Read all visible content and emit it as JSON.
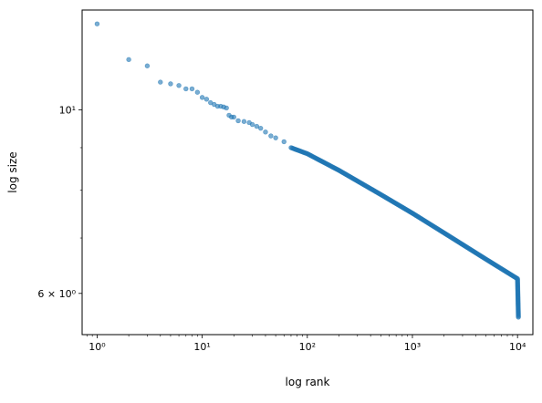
{
  "chart_data": {
    "type": "scatter",
    "title": "",
    "xlabel": "log rank",
    "ylabel": "log size",
    "xscale": "log",
    "yscale": "log",
    "xlim": [
      0.72,
      14000
    ],
    "ylim": [
      5.35,
      13.2
    ],
    "grid": false,
    "legend": "none",
    "marker_color": "#1f77b4",
    "marker_alpha": 0.6,
    "x_ticks": [
      {
        "value": 1,
        "label": "10⁰"
      },
      {
        "value": 10,
        "label": "10¹"
      },
      {
        "value": 100,
        "label": "10²"
      },
      {
        "value": 1000,
        "label": "10³"
      },
      {
        "value": 10000,
        "label": "10⁴"
      }
    ],
    "y_ticks": [
      {
        "value": 6,
        "label": "6 × 10⁰"
      },
      {
        "value": 10,
        "label": "10¹"
      }
    ],
    "y_minor_ticks": [
      7,
      8,
      9
    ],
    "points": [
      [
        1,
        12.7
      ],
      [
        2,
        11.5
      ],
      [
        3,
        11.3
      ],
      [
        4,
        10.8
      ],
      [
        5,
        10.75
      ],
      [
        6,
        10.7
      ],
      [
        7,
        10.6
      ],
      [
        8,
        10.6
      ],
      [
        9,
        10.5
      ],
      [
        10,
        10.35
      ],
      [
        11,
        10.3
      ],
      [
        12,
        10.2
      ],
      [
        13,
        10.15
      ],
      [
        14,
        10.1
      ],
      [
        15,
        10.1
      ],
      [
        16,
        10.08
      ],
      [
        17,
        10.05
      ],
      [
        18,
        9.85
      ],
      [
        19,
        9.8
      ],
      [
        20,
        9.8
      ],
      [
        22,
        9.7
      ],
      [
        25,
        9.68
      ],
      [
        28,
        9.65
      ],
      [
        30,
        9.6
      ],
      [
        33,
        9.55
      ],
      [
        36,
        9.5
      ],
      [
        40,
        9.4
      ],
      [
        45,
        9.3
      ],
      [
        50,
        9.25
      ],
      [
        60,
        9.15
      ]
    ],
    "dense_curve": [
      [
        70,
        9.0
      ],
      [
        100,
        8.85
      ],
      [
        200,
        8.45
      ],
      [
        500,
        7.9
      ],
      [
        1000,
        7.5
      ],
      [
        2000,
        7.1
      ],
      [
        5000,
        6.6
      ],
      [
        10000,
        6.25
      ],
      [
        10200,
        5.6
      ]
    ]
  }
}
